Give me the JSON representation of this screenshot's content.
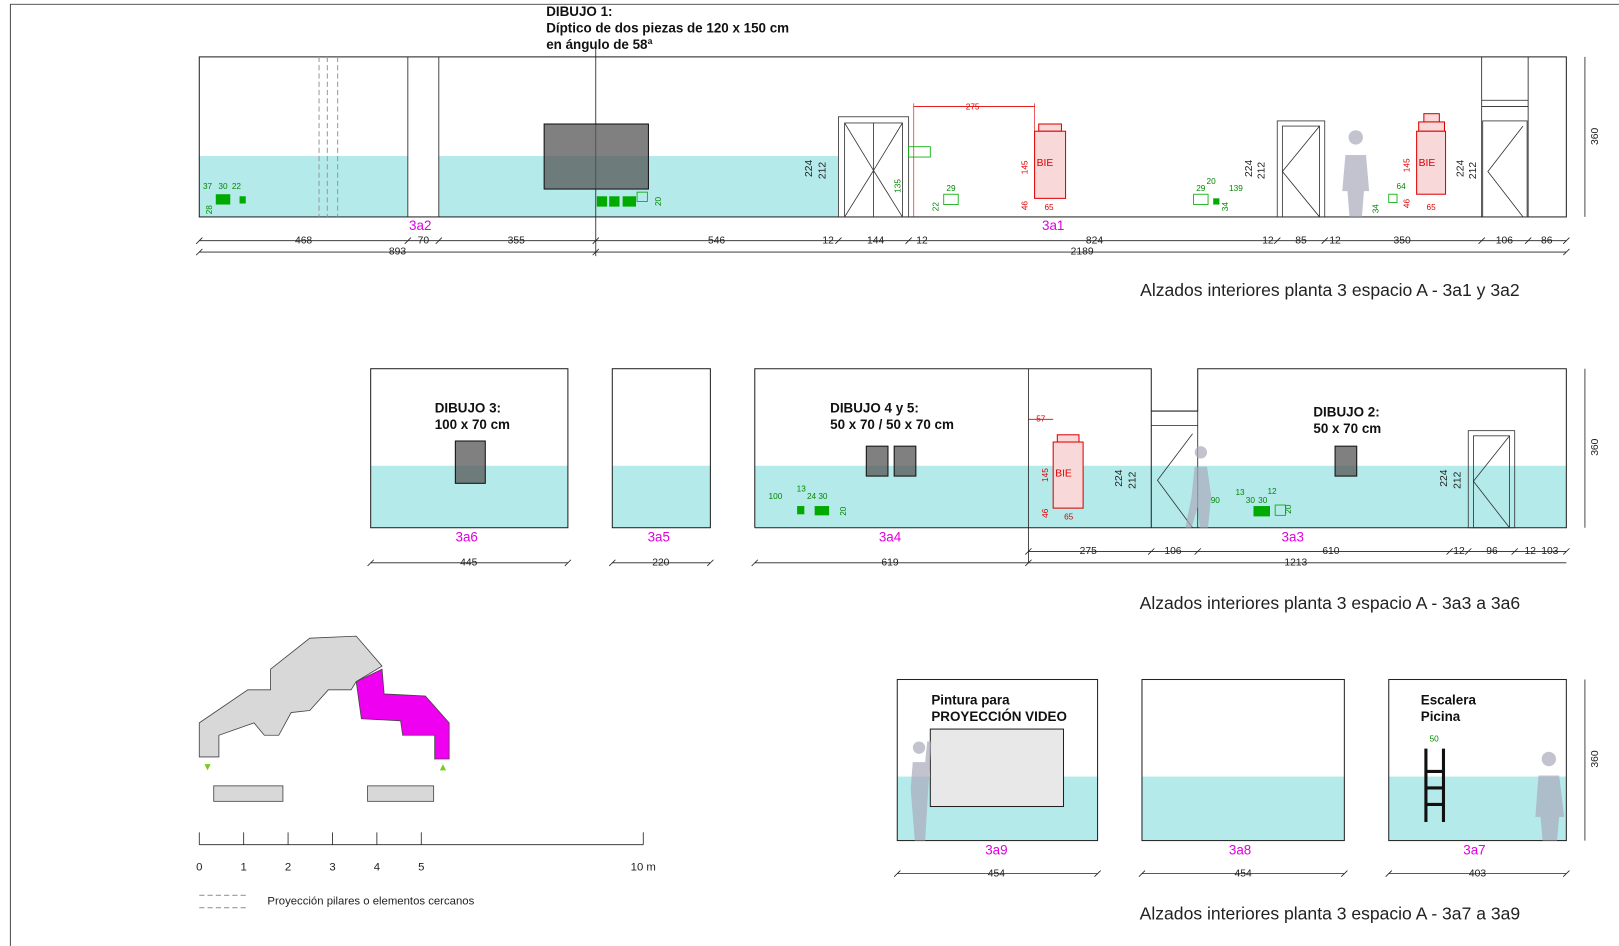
{
  "drawings": {
    "d1": [
      "DIBUJO 1:",
      "Díptico de dos piezas de 120 x 150 cm",
      "en ángulo de 58ª"
    ],
    "d3": [
      "DIBUJO 3:",
      "100 x 70 cm"
    ],
    "d45": [
      "DIBUJO 4 y 5:",
      "50 x 70 / 50 x 70 cm"
    ],
    "d2": [
      "DIBUJO 2:",
      "50 x 70 cm"
    ],
    "video": [
      "Pintura para",
      "PROYECCIÓN VIDEO"
    ],
    "stairs": [
      "Escalera",
      "Picina"
    ]
  },
  "captions": [
    "Alzados interiores planta 3 espacio A - 3a1 y 3a2",
    "Alzados interiores planta 3 espacio A - 3a3 a 3a6",
    "Alzados interiores planta 3 espacio A - 3a7 a 3a9"
  ],
  "wall_ids": [
    "3a2",
    "3a1",
    "3a6",
    "3a5",
    "3a4",
    "3a3",
    "3a9",
    "3a8",
    "3a7"
  ],
  "dims": {
    "row1a": [
      468,
      70,
      355,
      546,
      12,
      144,
      12,
      824,
      12,
      85,
      12,
      350,
      106,
      86
    ],
    "row1b": [
      893,
      2189
    ],
    "row2a": [
      445,
      220,
      619
    ],
    "row2b": [
      275,
      106,
      610,
      12,
      96,
      12,
      103
    ],
    "row2c": [
      1213
    ],
    "row3": [
      454,
      454,
      403
    ],
    "heights": [
      360,
      360,
      360
    ],
    "doors": [
      224,
      212,
      224,
      212,
      224,
      212,
      224,
      212,
      224,
      212
    ]
  },
  "bie": {
    "tags": [
      "BIE",
      "BIE",
      "BIE"
    ],
    "sizes": [
      145,
      46,
      65,
      145,
      46,
      65,
      145,
      46,
      65
    ],
    "offsets": [
      275,
      57
    ]
  },
  "fixtures": [
    37,
    30,
    22,
    28,
    20,
    135,
    29,
    22,
    29,
    20,
    139,
    34,
    34,
    64,
    100,
    13,
    24,
    30,
    20,
    90,
    13,
    30,
    30,
    12,
    20
  ],
  "ladder_width": 50,
  "scale": [
    "0",
    "1",
    "2",
    "3",
    "4",
    "5",
    "10 m"
  ],
  "legend": "Proyección pilares o elementos cercanos"
}
